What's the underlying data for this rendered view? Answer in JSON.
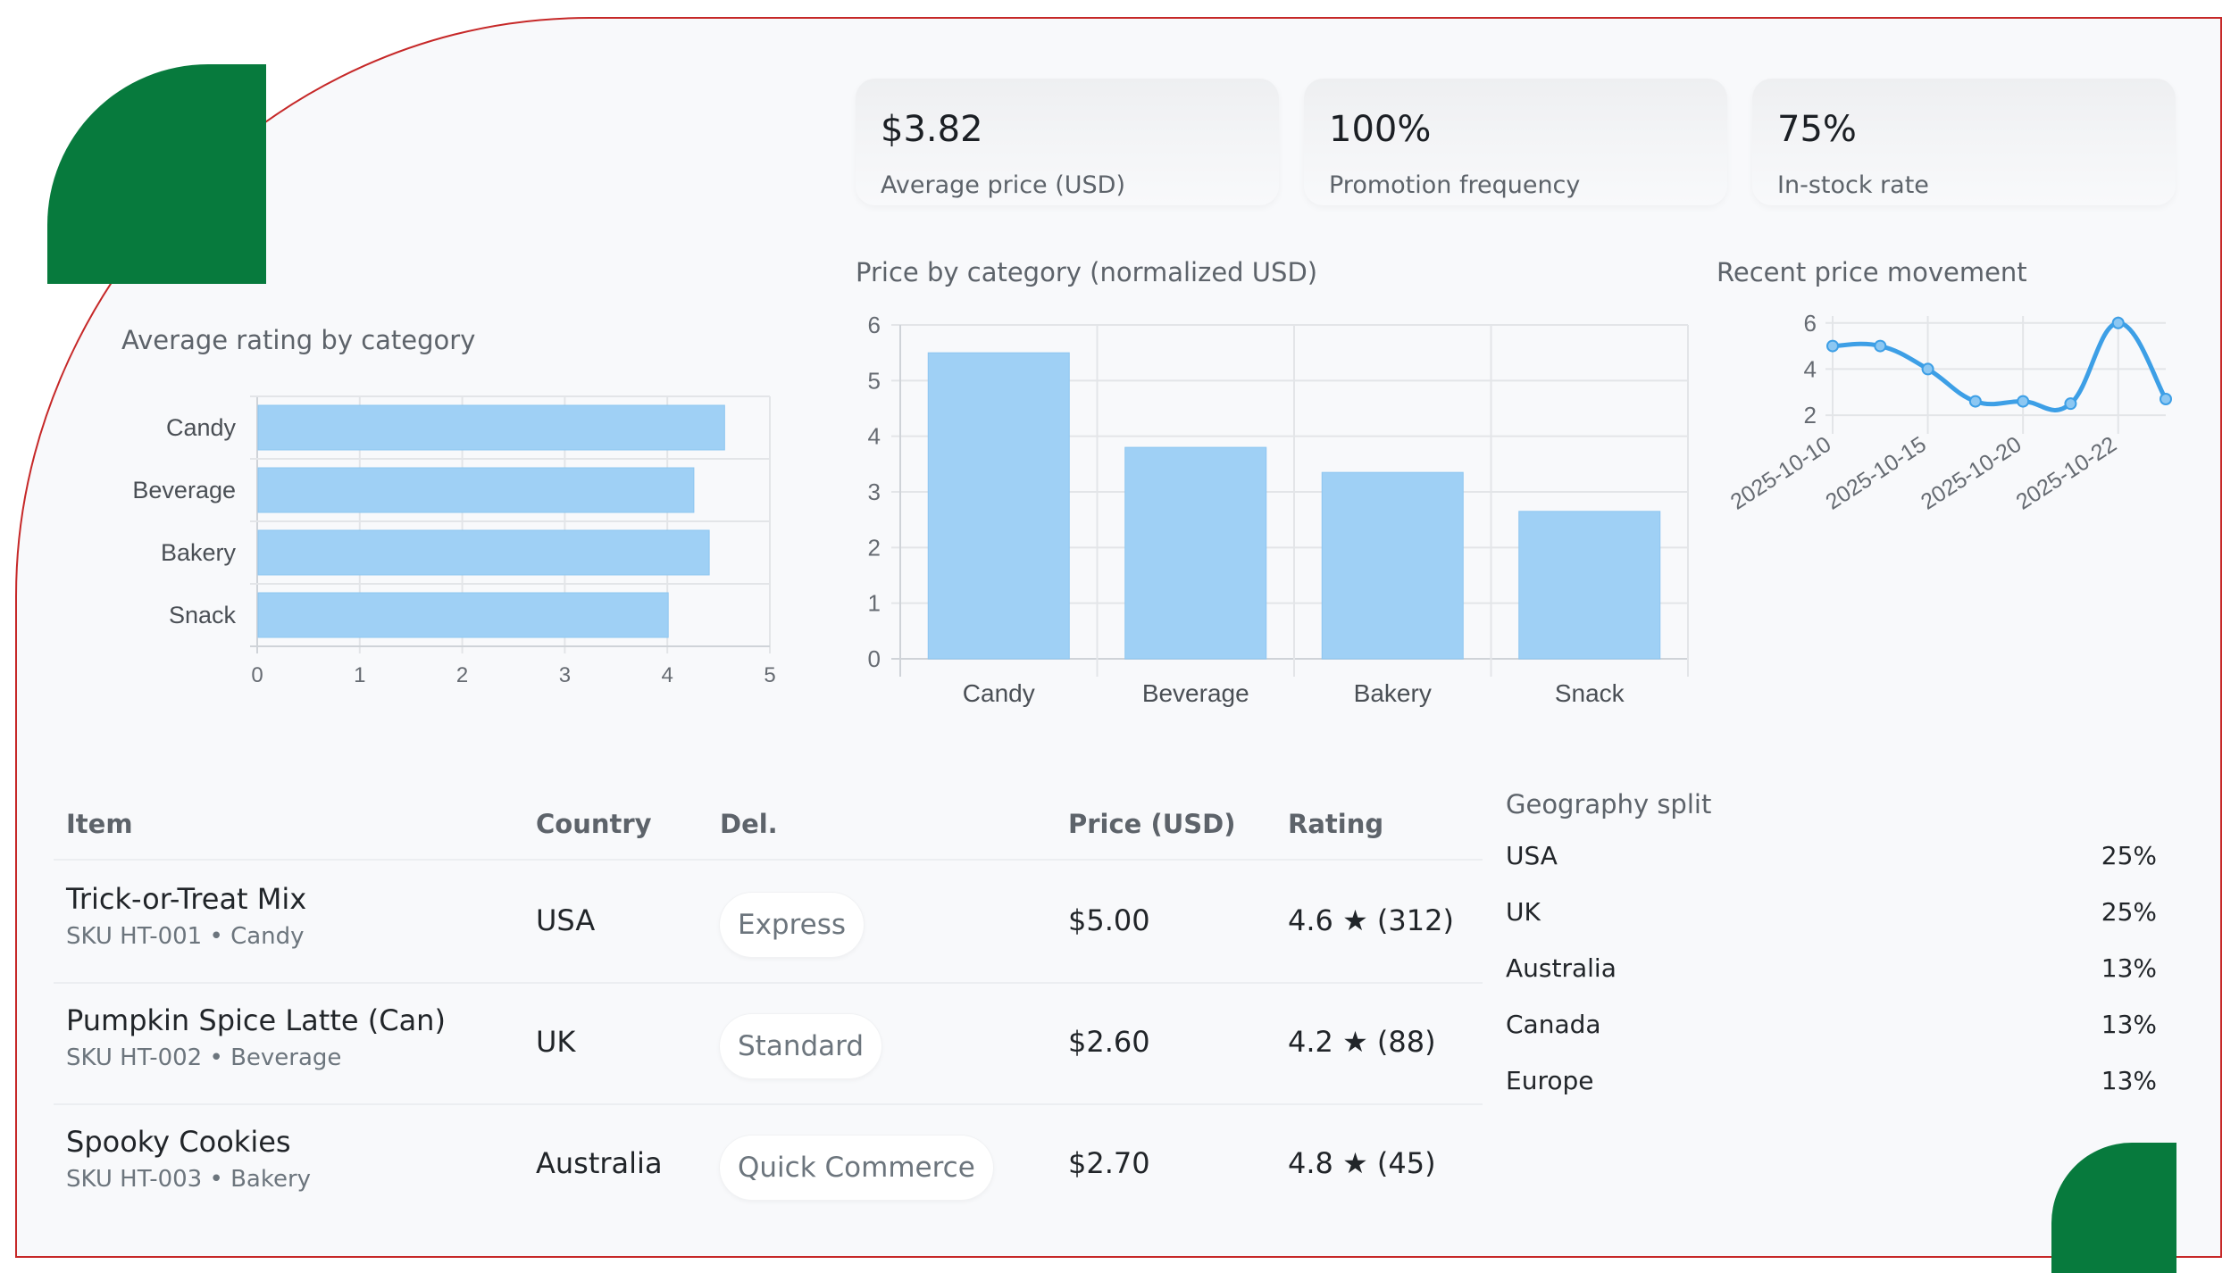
{
  "kpis": [
    {
      "value": "$3.82",
      "label": "Average price (USD)"
    },
    {
      "value": "100%",
      "label": "Promotion frequency"
    },
    {
      "value": "75%",
      "label": "In-stock rate"
    }
  ],
  "colors": {
    "brand_green": "#077a3d",
    "frame_red": "#c62828",
    "bar_fill": "#9fd0f5",
    "line": "#3d9fe6"
  },
  "chart_data": [
    {
      "type": "bar",
      "orientation": "horizontal",
      "title": "Average rating by category",
      "categories": [
        "Candy",
        "Beverage",
        "Bakery",
        "Snack"
      ],
      "values": [
        4.55,
        4.25,
        4.4,
        4.0
      ],
      "xlim": [
        0,
        5
      ],
      "x_ticks": [
        "0",
        "1",
        "2",
        "3",
        "4",
        "5"
      ],
      "grid": true
    },
    {
      "type": "bar",
      "title": "Price by category (normalized USD)",
      "categories": [
        "Candy",
        "Beverage",
        "Bakery",
        "Snack"
      ],
      "values": [
        5.5,
        3.8,
        3.35,
        2.65
      ],
      "ylim": [
        0,
        6
      ],
      "y_ticks": [
        "0",
        "1",
        "2",
        "3",
        "4",
        "5",
        "6"
      ],
      "grid": true
    },
    {
      "type": "line",
      "title": "Recent price movement",
      "x": [
        "2025-10-10",
        "2025-10-12",
        "2025-10-15",
        "2025-10-17",
        "2025-10-20",
        "2025-10-21",
        "2025-10-22",
        "2025-10-23"
      ],
      "values": [
        5.0,
        5.0,
        4.0,
        2.6,
        2.6,
        2.5,
        6.0,
        2.7
      ],
      "x_tick_labels": [
        "2025-10-10",
        "2025-10-15",
        "2025-10-20",
        "2025-10-22"
      ],
      "y_ticks": [
        "2",
        "4",
        "6"
      ],
      "ylim": [
        1.5,
        6.3
      ],
      "grid": true,
      "smooth": true
    }
  ],
  "table": {
    "headers": {
      "item": "Item",
      "country": "Country",
      "delivery": "Del.",
      "price": "Price (USD)",
      "rating": "Rating"
    },
    "rows": [
      {
        "name": "Trick-or-Treat Mix",
        "sub": "SKU HT-001 • Candy",
        "country": "USA",
        "delivery": "Express",
        "price": "$5.00",
        "rating": "4.6 ★ (312)"
      },
      {
        "name": "Pumpkin Spice Latte (Can)",
        "sub": "SKU HT-002 • Beverage",
        "country": "UK",
        "delivery": "Standard",
        "price": "$2.60",
        "rating": "4.2 ★ (88)"
      },
      {
        "name": "Spooky Cookies",
        "sub": "SKU HT-003 • Bakery",
        "country": "Australia",
        "delivery": "Quick Commerce",
        "price": "$2.70",
        "rating": "4.8 ★ (45)"
      }
    ]
  },
  "geography": {
    "title": "Geography split",
    "items": [
      {
        "name": "USA",
        "pct": "25%"
      },
      {
        "name": "UK",
        "pct": "25%"
      },
      {
        "name": "Australia",
        "pct": "13%"
      },
      {
        "name": "Canada",
        "pct": "13%"
      },
      {
        "name": "Europe",
        "pct": "13%"
      }
    ]
  }
}
